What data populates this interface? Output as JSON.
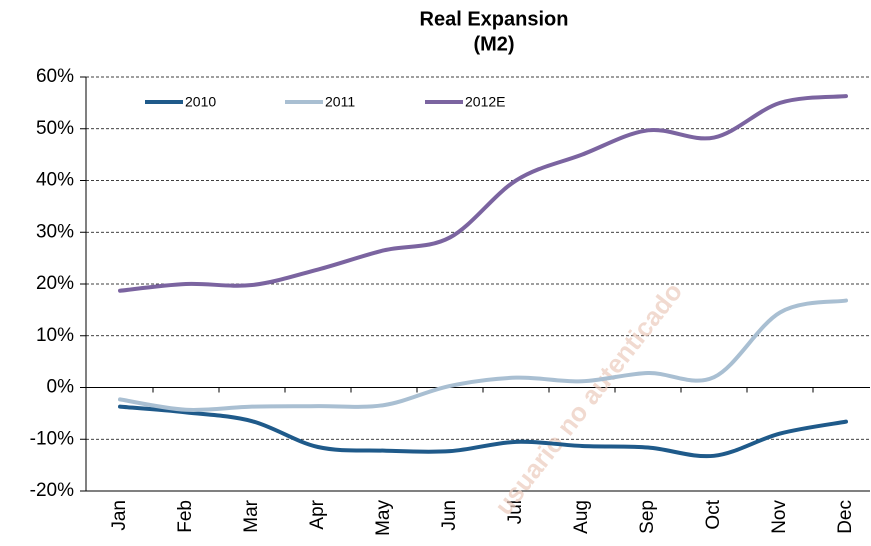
{
  "chart_data": {
    "type": "line",
    "title": "Real Expansion",
    "subtitle": "(M2)",
    "watermark": "usuario no autenticado",
    "categories": [
      "Jan",
      "Feb",
      "Mar",
      "Apr",
      "May",
      "Jun",
      "Jul",
      "Aug",
      "Sep",
      "Oct",
      "Nov",
      "Dec"
    ],
    "series": [
      {
        "name": "2010",
        "color": "#1f5a8a",
        "values": [
          -3.7,
          -4.8,
          -6.5,
          -11.5,
          -12.2,
          -12.3,
          -10.5,
          -11.3,
          -11.6,
          -13.2,
          -8.9,
          -6.6
        ]
      },
      {
        "name": "2011",
        "color": "#a9bfd2",
        "values": [
          -2.3,
          -4.3,
          -3.7,
          -3.6,
          -3.4,
          0.3,
          1.9,
          1.2,
          2.8,
          2.0,
          14.5,
          16.8
        ]
      },
      {
        "name": "2012E",
        "color": "#7b64a0",
        "values": [
          18.7,
          20.0,
          19.8,
          22.8,
          26.5,
          29.0,
          40.0,
          45.0,
          49.7,
          48.3,
          55.0,
          56.3
        ]
      }
    ],
    "ylim": [
      -20,
      60
    ],
    "yticks": [
      {
        "value": -20,
        "label": "-20%"
      },
      {
        "value": -10,
        "label": "-10%"
      },
      {
        "value": 0,
        "label": "0%"
      },
      {
        "value": 10,
        "label": "10%"
      },
      {
        "value": 20,
        "label": "20%"
      },
      {
        "value": 30,
        "label": "30%"
      },
      {
        "value": 40,
        "label": "40%"
      },
      {
        "value": 50,
        "label": "50%"
      },
      {
        "value": 60,
        "label": "60%"
      }
    ],
    "grid": true,
    "legend": "top-left"
  }
}
